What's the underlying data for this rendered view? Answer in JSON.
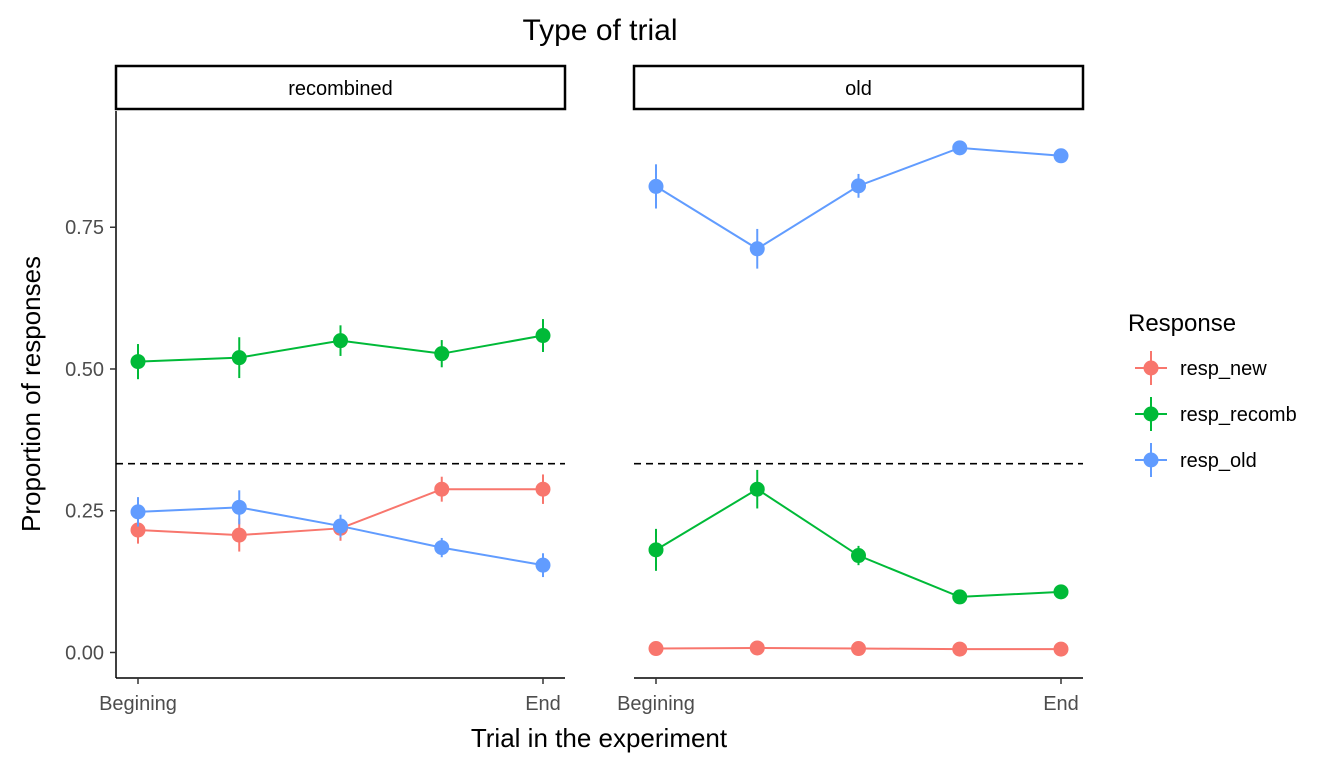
{
  "chart_data": {
    "type": "line",
    "title": "Type of trial",
    "xlabel": "Trial in the experiment",
    "ylabel": "Proportion of responses",
    "ylim": [
      -0.045,
      0.955
    ],
    "yticks": [
      0.0,
      0.25,
      0.5,
      0.75
    ],
    "ytick_labels": [
      "0.00",
      "0.25",
      "0.50",
      "0.75"
    ],
    "x": [
      1,
      2,
      3,
      4,
      5
    ],
    "xticks": [
      1,
      5
    ],
    "xtick_labels": [
      "Begining",
      "End"
    ],
    "reference_line": {
      "y": 0.333,
      "style": "dashed"
    },
    "grid": false,
    "legend": {
      "title": "Response",
      "position": "right"
    },
    "facets": [
      {
        "label": "recombined",
        "series": [
          {
            "name": "resp_new",
            "color": "#F8766D",
            "values": [
              0.216,
              0.207,
              0.219,
              0.288,
              0.288
            ],
            "lower": [
              0.192,
              0.178,
              0.197,
              0.266,
              0.262
            ],
            "upper": [
              0.24,
              0.236,
              0.241,
              0.31,
              0.314
            ]
          },
          {
            "name": "resp_recomb",
            "color": "#00BA38",
            "values": [
              0.513,
              0.52,
              0.55,
              0.527,
              0.559
            ],
            "lower": [
              0.482,
              0.484,
              0.523,
              0.503,
              0.53
            ],
            "upper": [
              0.544,
              0.556,
              0.577,
              0.551,
              0.588
            ]
          },
          {
            "name": "resp_old",
            "color": "#619CFF",
            "values": [
              0.248,
              0.256,
              0.223,
              0.185,
              0.154
            ],
            "lower": [
              0.222,
              0.226,
              0.203,
              0.168,
              0.133
            ],
            "upper": [
              0.274,
              0.286,
              0.243,
              0.202,
              0.175
            ]
          }
        ]
      },
      {
        "label": "old",
        "series": [
          {
            "name": "resp_new",
            "color": "#F8766D",
            "values": [
              0.007,
              0.008,
              0.007,
              0.006,
              0.006
            ],
            "lower": [
              0.002,
              0.003,
              0.002,
              0.002,
              0.002
            ],
            "upper": [
              0.012,
              0.013,
              0.012,
              0.01,
              0.01
            ]
          },
          {
            "name": "resp_recomb",
            "color": "#00BA38",
            "values": [
              0.181,
              0.288,
              0.171,
              0.098,
              0.107
            ],
            "lower": [
              0.144,
              0.254,
              0.154,
              0.09,
              0.098
            ],
            "upper": [
              0.218,
              0.322,
              0.188,
              0.106,
              0.116
            ]
          },
          {
            "name": "resp_old",
            "color": "#619CFF",
            "values": [
              0.822,
              0.712,
              0.823,
              0.89,
              0.876
            ],
            "lower": [
              0.783,
              0.677,
              0.802,
              0.882,
              0.868
            ],
            "upper": [
              0.861,
              0.747,
              0.844,
              0.898,
              0.884
            ]
          }
        ]
      }
    ]
  }
}
